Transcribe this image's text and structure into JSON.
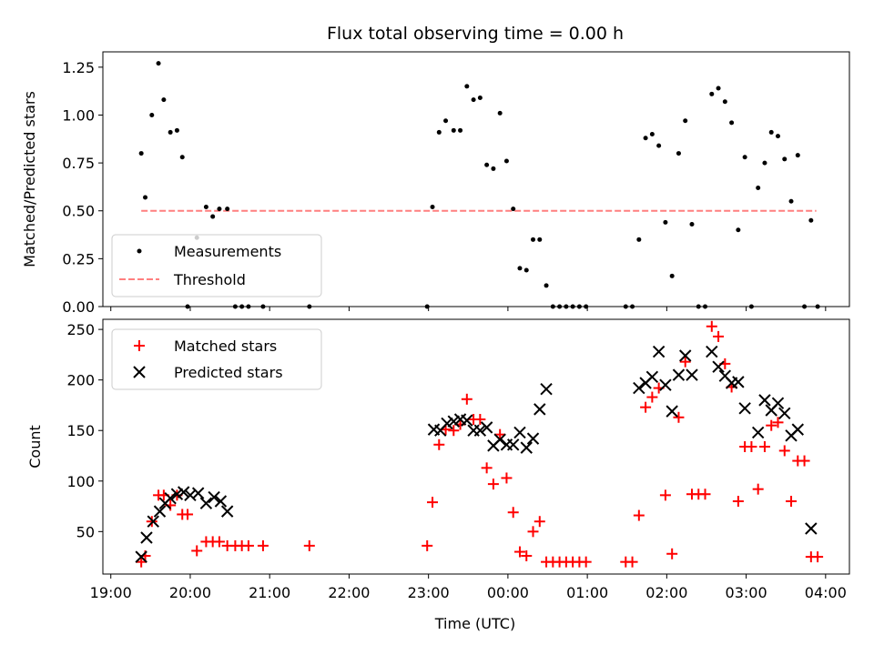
{
  "chart_data": [
    {
      "type": "scatter",
      "title": "Flux total observing time = 0.00 h",
      "xlabel": "",
      "ylabel": "Matched/Predicted stars",
      "xlim": [
        "19:00",
        "04:00"
      ],
      "ylim": [
        0,
        1.33
      ],
      "yticks": [
        "0.00",
        "0.25",
        "0.50",
        "0.75",
        "1.00",
        "1.25"
      ],
      "legend": {
        "position": "lower-left"
      },
      "series": [
        {
          "name": "Measurements",
          "marker": "dot",
          "color": "#000000",
          "points": [
            [
              "19:23",
              0.8
            ],
            [
              "19:26",
              0.57
            ],
            [
              "19:31",
              1.0
            ],
            [
              "19:36",
              1.27
            ],
            [
              "19:40",
              1.08
            ],
            [
              "19:45",
              0.91
            ],
            [
              "19:50",
              0.92
            ],
            [
              "19:54",
              0.78
            ],
            [
              "19:58",
              0.0
            ],
            [
              "20:05",
              0.36
            ],
            [
              "20:12",
              0.52
            ],
            [
              "20:17",
              0.47
            ],
            [
              "20:22",
              0.51
            ],
            [
              "20:28",
              0.51
            ],
            [
              "20:34",
              0.0
            ],
            [
              "20:39",
              0.0
            ],
            [
              "20:44",
              0.0
            ],
            [
              "20:55",
              0.0
            ],
            [
              "21:30",
              0.0
            ],
            [
              "22:59",
              0.0
            ],
            [
              "23:03",
              0.52
            ],
            [
              "23:08",
              0.91
            ],
            [
              "23:13",
              0.97
            ],
            [
              "23:19",
              0.92
            ],
            [
              "23:24",
              0.92
            ],
            [
              "23:29",
              1.15
            ],
            [
              "23:34",
              1.08
            ],
            [
              "23:39",
              1.09
            ],
            [
              "23:44",
              0.74
            ],
            [
              "23:49",
              0.72
            ],
            [
              "23:54",
              1.01
            ],
            [
              "23:59",
              0.76
            ],
            [
              "00:04",
              0.51
            ],
            [
              "00:09",
              0.2
            ],
            [
              "00:14",
              0.19
            ],
            [
              "00:19",
              0.35
            ],
            [
              "00:24",
              0.35
            ],
            [
              "00:29",
              0.11
            ],
            [
              "00:34",
              0.0
            ],
            [
              "00:39",
              0.0
            ],
            [
              "00:44",
              0.0
            ],
            [
              "00:49",
              0.0
            ],
            [
              "00:54",
              0.0
            ],
            [
              "00:59",
              0.0
            ],
            [
              "01:29",
              0.0
            ],
            [
              "01:34",
              0.0
            ],
            [
              "01:39",
              0.35
            ],
            [
              "01:44",
              0.88
            ],
            [
              "01:49",
              0.9
            ],
            [
              "01:54",
              0.84
            ],
            [
              "01:59",
              0.44
            ],
            [
              "02:04",
              0.16
            ],
            [
              "02:09",
              0.8
            ],
            [
              "02:14",
              0.97
            ],
            [
              "02:19",
              0.43
            ],
            [
              "02:24",
              0.0
            ],
            [
              "02:29",
              0.0
            ],
            [
              "02:34",
              1.11
            ],
            [
              "02:39",
              1.14
            ],
            [
              "02:44",
              1.07
            ],
            [
              "02:49",
              0.96
            ],
            [
              "02:54",
              0.4
            ],
            [
              "02:59",
              0.78
            ],
            [
              "03:04",
              0.0
            ],
            [
              "03:09",
              0.62
            ],
            [
              "03:14",
              0.75
            ],
            [
              "03:19",
              0.91
            ],
            [
              "03:24",
              0.89
            ],
            [
              "03:29",
              0.77
            ],
            [
              "03:34",
              0.55
            ],
            [
              "03:39",
              0.79
            ],
            [
              "03:44",
              0.0
            ],
            [
              "03:49",
              0.45
            ],
            [
              "03:54",
              0.0
            ]
          ]
        },
        {
          "name": "Threshold",
          "style": "dashed",
          "color": "#ff7f7f",
          "points": [
            [
              "19:23",
              0.5
            ],
            [
              "03:53",
              0.5
            ]
          ]
        }
      ]
    },
    {
      "type": "scatter",
      "title": "",
      "xlabel": "Time (UTC)",
      "ylabel": "Count",
      "xlim": [
        "19:00",
        "04:00"
      ],
      "xticks": [
        "19:00",
        "20:00",
        "21:00",
        "22:00",
        "23:00",
        "00:00",
        "01:00",
        "02:00",
        "03:00",
        "04:00"
      ],
      "ylim": [
        8,
        260
      ],
      "yticks": [
        "50",
        "100",
        "150",
        "200",
        "250"
      ],
      "legend": {
        "position": "upper-left"
      },
      "series": [
        {
          "name": "Matched stars",
          "marker": "plus",
          "color": "#ff0000",
          "points": [
            [
              "19:23",
              20
            ],
            [
              "19:26",
              26
            ],
            [
              "19:31",
              60
            ],
            [
              "19:36",
              86
            ],
            [
              "19:40",
              86
            ],
            [
              "19:45",
              76
            ],
            [
              "19:50",
              86
            ],
            [
              "19:54",
              67
            ],
            [
              "19:58",
              67
            ],
            [
              "20:05",
              31
            ],
            [
              "20:12",
              40
            ],
            [
              "20:17",
              40
            ],
            [
              "20:22",
              40
            ],
            [
              "20:28",
              36
            ],
            [
              "20:34",
              36
            ],
            [
              "20:39",
              36
            ],
            [
              "20:44",
              36
            ],
            [
              "20:55",
              36
            ],
            [
              "21:30",
              36
            ],
            [
              "22:59",
              36
            ],
            [
              "23:03",
              79
            ],
            [
              "23:08",
              136
            ],
            [
              "23:13",
              151
            ],
            [
              "23:19",
              150
            ],
            [
              "23:24",
              156
            ],
            [
              "23:29",
              181
            ],
            [
              "23:34",
              161
            ],
            [
              "23:39",
              161
            ],
            [
              "23:44",
              113
            ],
            [
              "23:49",
              97
            ],
            [
              "23:54",
              146
            ],
            [
              "23:59",
              103
            ],
            [
              "00:04",
              69
            ],
            [
              "00:09",
              30
            ],
            [
              "00:14",
              26
            ],
            [
              "00:19",
              50
            ],
            [
              "00:24",
              60
            ],
            [
              "00:29",
              20
            ],
            [
              "00:34",
              20
            ],
            [
              "00:39",
              20
            ],
            [
              "00:44",
              20
            ],
            [
              "00:49",
              20
            ],
            [
              "00:54",
              20
            ],
            [
              "00:59",
              20
            ],
            [
              "01:29",
              20
            ],
            [
              "01:34",
              20
            ],
            [
              "01:39",
              66
            ],
            [
              "01:44",
              173
            ],
            [
              "01:49",
              183
            ],
            [
              "01:54",
              192
            ],
            [
              "01:59",
              86
            ],
            [
              "02:04",
              28
            ],
            [
              "02:09",
              163
            ],
            [
              "02:14",
              218
            ],
            [
              "02:19",
              87
            ],
            [
              "02:24",
              87
            ],
            [
              "02:29",
              87
            ],
            [
              "02:34",
              253
            ],
            [
              "02:39",
              243
            ],
            [
              "02:44",
              216
            ],
            [
              "02:49",
              193
            ],
            [
              "02:54",
              80
            ],
            [
              "02:59",
              134
            ],
            [
              "03:04",
              134
            ],
            [
              "03:09",
              92
            ],
            [
              "03:14",
              134
            ],
            [
              "03:19",
              155
            ],
            [
              "03:24",
              158
            ],
            [
              "03:29",
              130
            ],
            [
              "03:34",
              80
            ],
            [
              "03:39",
              120
            ],
            [
              "03:44",
              120
            ],
            [
              "03:49",
              25
            ],
            [
              "03:54",
              25
            ]
          ]
        },
        {
          "name": "Predicted stars",
          "marker": "x",
          "color": "#000000",
          "points": [
            [
              "19:23",
              25
            ],
            [
              "19:27",
              44
            ],
            [
              "19:32",
              60
            ],
            [
              "19:37",
              70
            ],
            [
              "19:41",
              78
            ],
            [
              "19:45",
              83
            ],
            [
              "19:50",
              87
            ],
            [
              "19:55",
              89
            ],
            [
              "20:00",
              86
            ],
            [
              "20:06",
              88
            ],
            [
              "20:12",
              78
            ],
            [
              "20:18",
              84
            ],
            [
              "20:23",
              80
            ],
            [
              "20:28",
              70
            ],
            [
              "23:04",
              151
            ],
            [
              "23:09",
              150
            ],
            [
              "23:14",
              157
            ],
            [
              "23:19",
              159
            ],
            [
              "23:24",
              161
            ],
            [
              "23:29",
              160
            ],
            [
              "23:34",
              150
            ],
            [
              "23:39",
              150
            ],
            [
              "23:44",
              153
            ],
            [
              "23:49",
              135
            ],
            [
              "23:54",
              141
            ],
            [
              "23:59",
              136
            ],
            [
              "00:04",
              136
            ],
            [
              "00:09",
              148
            ],
            [
              "00:14",
              133
            ],
            [
              "00:19",
              142
            ],
            [
              "00:24",
              171
            ],
            [
              "00:29",
              191
            ],
            [
              "01:39",
              192
            ],
            [
              "01:44",
              197
            ],
            [
              "01:49",
              203
            ],
            [
              "01:54",
              228
            ],
            [
              "01:59",
              195
            ],
            [
              "02:04",
              169
            ],
            [
              "02:09",
              205
            ],
            [
              "02:14",
              224
            ],
            [
              "02:19",
              205
            ],
            [
              "02:34",
              228
            ],
            [
              "02:39",
              213
            ],
            [
              "02:44",
              204
            ],
            [
              "02:49",
              197
            ],
            [
              "02:54",
              198
            ],
            [
              "02:59",
              172
            ],
            [
              "03:09",
              148
            ],
            [
              "03:14",
              180
            ],
            [
              "03:19",
              170
            ],
            [
              "03:24",
              177
            ],
            [
              "03:29",
              167
            ],
            [
              "03:34",
              145
            ],
            [
              "03:39",
              151
            ],
            [
              "03:49",
              53
            ]
          ]
        }
      ]
    }
  ]
}
